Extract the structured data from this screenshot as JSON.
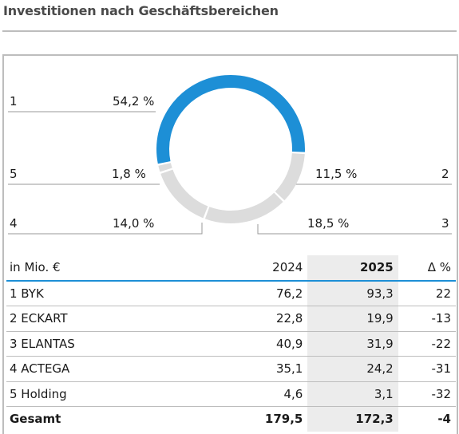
{
  "title": "Investitionen nach Geschäftsbereichen",
  "chart_data": {
    "type": "pie",
    "variant": "donut",
    "highlight_color": "#1d8fd6",
    "base_color": "#dcdcdc",
    "slices": [
      {
        "key": "1",
        "label": "54,2 %",
        "value": 54.2,
        "highlight": true
      },
      {
        "key": "2",
        "label": "11,5 %",
        "value": 11.5,
        "highlight": false
      },
      {
        "key": "3",
        "label": "18,5 %",
        "value": 18.5,
        "highlight": false
      },
      {
        "key": "4",
        "label": "14,0 %",
        "value": 14.0,
        "highlight": false
      },
      {
        "key": "5",
        "label": "1,8 %",
        "value": 1.8,
        "highlight": false
      }
    ]
  },
  "table": {
    "columns": [
      "in Mio. €",
      "2024",
      "2025",
      "Δ %"
    ],
    "rows": [
      {
        "name": "1 BYK",
        "y2024": "76,2",
        "y2025": "93,3",
        "delta": "22"
      },
      {
        "name": "2 ECKART",
        "y2024": "22,8",
        "y2025": "19,9",
        "delta": "-13"
      },
      {
        "name": "3 ELANTAS",
        "y2024": "40,9",
        "y2025": "31,9",
        "delta": "-22"
      },
      {
        "name": "4 ACTEGA",
        "y2024": "35,1",
        "y2025": "24,2",
        "delta": "-31"
      },
      {
        "name": "5 Holding",
        "y2024": "4,6",
        "y2025": "3,1",
        "delta": "-32"
      }
    ],
    "total": {
      "name": "Gesamt",
      "y2024": "179,5",
      "y2025": "172,3",
      "delta": "-4"
    }
  }
}
